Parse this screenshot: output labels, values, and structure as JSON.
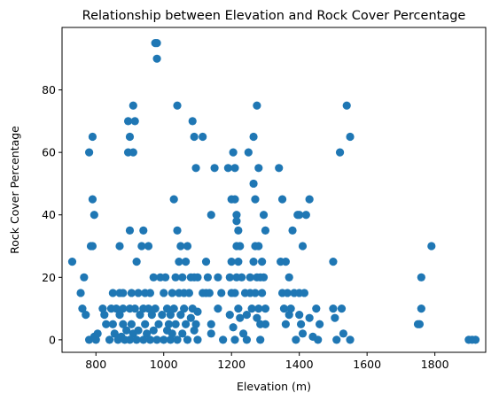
{
  "chart_data": {
    "type": "scatter",
    "title": "Relationship between Elevation and Rock Cover Percentage",
    "xlabel": "Elevation (m)",
    "ylabel": "Rock Cover Percentage",
    "xlim": [
      700,
      1950
    ],
    "ylim": [
      -4,
      100
    ],
    "xticks": [
      800,
      1000,
      1200,
      1400,
      1600,
      1800
    ],
    "yticks": [
      0,
      20,
      40,
      60,
      80
    ],
    "grid": false,
    "marker_color": "#1f77b4",
    "points": [
      [
        730,
        25
      ],
      [
        755,
        15
      ],
      [
        760,
        10
      ],
      [
        765,
        20
      ],
      [
        770,
        8
      ],
      [
        780,
        0
      ],
      [
        780,
        60
      ],
      [
        785,
        30
      ],
      [
        790,
        65
      ],
      [
        790,
        45
      ],
      [
        790,
        30
      ],
      [
        795,
        40
      ],
      [
        795,
        1
      ],
      [
        800,
        0
      ],
      [
        805,
        2
      ],
      [
        820,
        10
      ],
      [
        825,
        8
      ],
      [
        830,
        5
      ],
      [
        840,
        0
      ],
      [
        845,
        10
      ],
      [
        850,
        15
      ],
      [
        850,
        5
      ],
      [
        855,
        2
      ],
      [
        860,
        10
      ],
      [
        865,
        0
      ],
      [
        870,
        30
      ],
      [
        870,
        15
      ],
      [
        870,
        8
      ],
      [
        875,
        1
      ],
      [
        880,
        10
      ],
      [
        880,
        5
      ],
      [
        880,
        15
      ],
      [
        885,
        0
      ],
      [
        890,
        3
      ],
      [
        895,
        70
      ],
      [
        895,
        60
      ],
      [
        900,
        65
      ],
      [
        900,
        35
      ],
      [
        900,
        10
      ],
      [
        900,
        0
      ],
      [
        905,
        15
      ],
      [
        905,
        5
      ],
      [
        910,
        75
      ],
      [
        910,
        60
      ],
      [
        910,
        2
      ],
      [
        915,
        70
      ],
      [
        915,
        10
      ],
      [
        920,
        25
      ],
      [
        920,
        0
      ],
      [
        925,
        15
      ],
      [
        925,
        3
      ],
      [
        930,
        8
      ],
      [
        935,
        30
      ],
      [
        940,
        35
      ],
      [
        940,
        10
      ],
      [
        940,
        0
      ],
      [
        945,
        15
      ],
      [
        945,
        5
      ],
      [
        950,
        2
      ],
      [
        955,
        30
      ],
      [
        955,
        10
      ],
      [
        960,
        15
      ],
      [
        960,
        0
      ],
      [
        965,
        8
      ],
      [
        970,
        20
      ],
      [
        970,
        3
      ],
      [
        975,
        95
      ],
      [
        975,
        10
      ],
      [
        980,
        95
      ],
      [
        980,
        90
      ],
      [
        980,
        0
      ],
      [
        985,
        5
      ],
      [
        990,
        20
      ],
      [
        995,
        8
      ],
      [
        1000,
        15
      ],
      [
        1000,
        0
      ],
      [
        1005,
        20
      ],
      [
        1010,
        10
      ],
      [
        1010,
        3
      ],
      [
        1015,
        5
      ],
      [
        1020,
        8
      ],
      [
        1020,
        0
      ],
      [
        1025,
        15
      ],
      [
        1025,
        2
      ],
      [
        1030,
        45
      ],
      [
        1030,
        10
      ],
      [
        1035,
        20
      ],
      [
        1035,
        5
      ],
      [
        1040,
        75
      ],
      [
        1040,
        35
      ],
      [
        1040,
        0
      ],
      [
        1045,
        25
      ],
      [
        1045,
        15
      ],
      [
        1050,
        30
      ],
      [
        1050,
        8
      ],
      [
        1055,
        20
      ],
      [
        1055,
        2
      ],
      [
        1060,
        15
      ],
      [
        1060,
        10
      ],
      [
        1065,
        25
      ],
      [
        1065,
        5
      ],
      [
        1070,
        30
      ],
      [
        1070,
        0
      ],
      [
        1075,
        15
      ],
      [
        1080,
        20
      ],
      [
        1080,
        7
      ],
      [
        1085,
        70
      ],
      [
        1085,
        10
      ],
      [
        1090,
        65
      ],
      [
        1090,
        20
      ],
      [
        1090,
        3
      ],
      [
        1095,
        55
      ],
      [
        1095,
        5
      ],
      [
        1100,
        20
      ],
      [
        1100,
        9
      ],
      [
        1100,
        0
      ],
      [
        1115,
        65
      ],
      [
        1115,
        15
      ],
      [
        1125,
        25
      ],
      [
        1125,
        15
      ],
      [
        1130,
        20
      ],
      [
        1135,
        15
      ],
      [
        1140,
        40
      ],
      [
        1140,
        5
      ],
      [
        1140,
        2
      ],
      [
        1150,
        55
      ],
      [
        1160,
        20
      ],
      [
        1160,
        10
      ],
      [
        1170,
        15
      ],
      [
        1175,
        0
      ],
      [
        1190,
        55
      ],
      [
        1195,
        20
      ],
      [
        1195,
        8
      ],
      [
        1200,
        25
      ],
      [
        1200,
        45
      ],
      [
        1200,
        15
      ],
      [
        1205,
        60
      ],
      [
        1205,
        4
      ],
      [
        1210,
        55
      ],
      [
        1210,
        45
      ],
      [
        1210,
        15
      ],
      [
        1210,
        0
      ],
      [
        1215,
        40
      ],
      [
        1215,
        38
      ],
      [
        1215,
        30
      ],
      [
        1215,
        20
      ],
      [
        1220,
        35
      ],
      [
        1220,
        25
      ],
      [
        1220,
        10
      ],
      [
        1225,
        30
      ],
      [
        1225,
        7
      ],
      [
        1230,
        20
      ],
      [
        1235,
        2
      ],
      [
        1240,
        15
      ],
      [
        1245,
        8
      ],
      [
        1245,
        0
      ],
      [
        1250,
        60
      ],
      [
        1255,
        20
      ],
      [
        1255,
        15
      ],
      [
        1260,
        10
      ],
      [
        1265,
        65
      ],
      [
        1265,
        50
      ],
      [
        1265,
        25
      ],
      [
        1270,
        45
      ],
      [
        1270,
        30
      ],
      [
        1270,
        15
      ],
      [
        1275,
        75
      ],
      [
        1275,
        20
      ],
      [
        1275,
        7
      ],
      [
        1280,
        55
      ],
      [
        1280,
        30
      ],
      [
        1280,
        10
      ],
      [
        1285,
        20
      ],
      [
        1285,
        5
      ],
      [
        1285,
        0
      ],
      [
        1290,
        25
      ],
      [
        1290,
        15
      ],
      [
        1295,
        40
      ],
      [
        1295,
        20
      ],
      [
        1300,
        35
      ],
      [
        1300,
        10
      ],
      [
        1300,
        5
      ],
      [
        1340,
        55
      ],
      [
        1345,
        25
      ],
      [
        1350,
        45
      ],
      [
        1350,
        15
      ],
      [
        1355,
        10
      ],
      [
        1360,
        25
      ],
      [
        1360,
        5
      ],
      [
        1365,
        15
      ],
      [
        1370,
        20
      ],
      [
        1370,
        8
      ],
      [
        1375,
        10
      ],
      [
        1380,
        35
      ],
      [
        1385,
        15
      ],
      [
        1390,
        0
      ],
      [
        1395,
        40
      ],
      [
        1400,
        40
      ],
      [
        1400,
        15
      ],
      [
        1400,
        8
      ],
      [
        1405,
        5
      ],
      [
        1410,
        30
      ],
      [
        1410,
        2
      ],
      [
        1415,
        15
      ],
      [
        1420,
        40
      ],
      [
        1430,
        45
      ],
      [
        1430,
        7
      ],
      [
        1440,
        1
      ],
      [
        1450,
        10
      ],
      [
        1455,
        0
      ],
      [
        1460,
        5
      ],
      [
        1500,
        25
      ],
      [
        1500,
        10
      ],
      [
        1505,
        7
      ],
      [
        1510,
        0
      ],
      [
        1520,
        60
      ],
      [
        1525,
        10
      ],
      [
        1530,
        2
      ],
      [
        1540,
        75
      ],
      [
        1550,
        65
      ],
      [
        1550,
        0
      ],
      [
        1750,
        5
      ],
      [
        1755,
        5
      ],
      [
        1760,
        20
      ],
      [
        1760,
        10
      ],
      [
        1790,
        30
      ],
      [
        1900,
        0
      ],
      [
        1910,
        0
      ],
      [
        1920,
        0
      ]
    ]
  }
}
